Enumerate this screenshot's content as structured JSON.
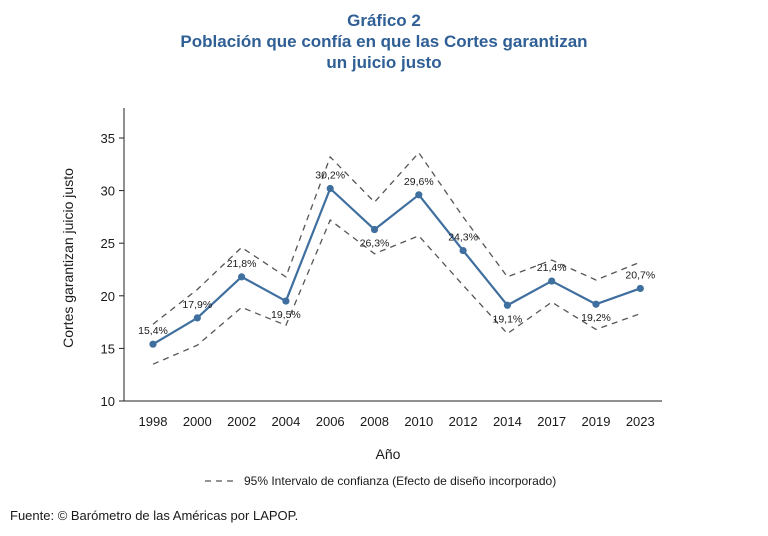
{
  "chart_data": {
    "type": "line",
    "title_line1": "Gráfico 2",
    "title_line2": "Población que confía en que las Cortes garantizan",
    "title_line3": "un juicio justo",
    "xlabel": "Año",
    "ylabel": "Cortes garantizan juicio justo",
    "ylim": [
      10,
      35
    ],
    "yticks": [
      10,
      15,
      20,
      25,
      30,
      35
    ],
    "categories": [
      "1998",
      "2000",
      "2002",
      "2004",
      "2006",
      "2008",
      "2010",
      "2012",
      "2014",
      "2017",
      "2019",
      "2023"
    ],
    "series": [
      {
        "values": [
          15.4,
          17.9,
          21.8,
          19.5,
          30.2,
          26.3,
          29.6,
          24.3,
          19.1,
          21.4,
          19.2,
          20.7
        ],
        "labels": [
          "15,4%",
          "17,9%",
          "21,8%",
          "19,5%",
          "30,2%",
          "26,3%",
          "29,6%",
          "24,3%",
          "19,1%",
          "21,4%",
          "19,2%",
          "20,7%"
        ],
        "color": "#3f6f9f"
      }
    ],
    "ci_upper": [
      17.3,
      20.6,
      24.6,
      21.8,
      33.2,
      28.9,
      33.6,
      27.5,
      21.8,
      23.4,
      21.5,
      23.2
    ],
    "ci_lower": [
      13.5,
      15.3,
      18.9,
      17.2,
      27.2,
      24.0,
      25.7,
      21.0,
      16.4,
      19.4,
      16.8,
      18.3
    ],
    "ci_color": "#555555",
    "legend": {
      "text": "95% Intervalo de confianza (Efecto de diseño incorporado)",
      "position": "bottom-center"
    },
    "grid": false
  },
  "source": "Fuente: © Barómetro de las Américas por LAPOP."
}
